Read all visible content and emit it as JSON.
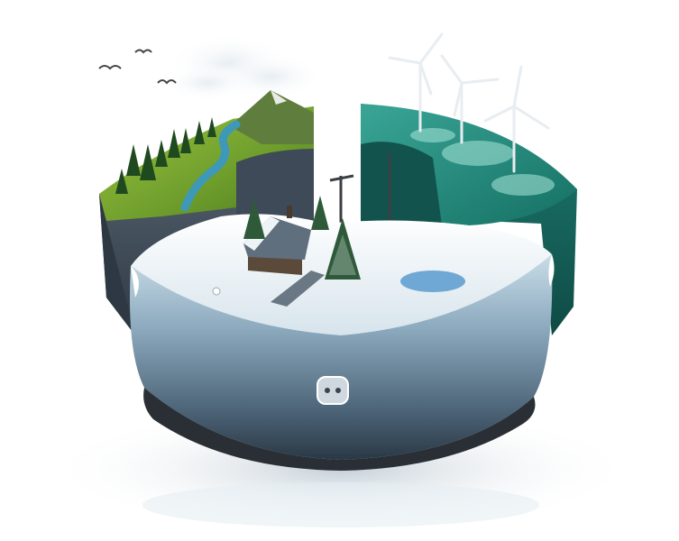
{
  "image": {
    "subject": "energy-landscape-3d-pie",
    "segments": [
      "mountain-forest-river",
      "offshore-wind-farm",
      "snowy-winter-cabin"
    ],
    "colors": {
      "background": "#ffffff",
      "grass": "#7aa833",
      "forest": "#1f4a1f",
      "river": "#3e98b7",
      "sea": "#1e7f72",
      "sea_dark": "#125650",
      "snow": "#edf3f7",
      "ice_side": "#7e9fb4",
      "ice_dark": "#2c3f50",
      "rock": "#4b5968",
      "cabin_roof": "#5f6f7d",
      "turbine": "#e8edf1"
    },
    "icons": [
      "bird-icon",
      "cloud-icon",
      "wind-turbine-icon",
      "pine-tree-icon",
      "cabin-icon",
      "power-socket-icon",
      "utility-pole-icon"
    ]
  }
}
